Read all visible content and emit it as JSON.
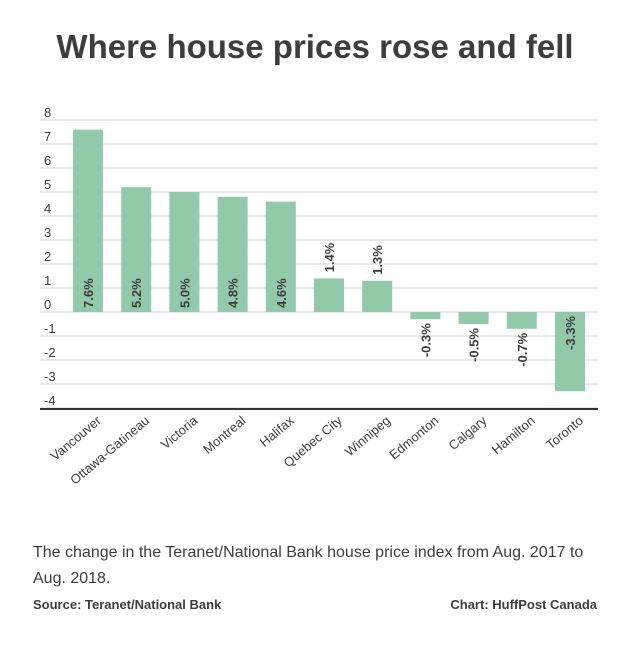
{
  "title": "Where house prices rose and fell",
  "caption": "The change in the Teranet/National Bank house price index from Aug. 2017 to Aug. 2018.",
  "source": "Source: Teranet/National Bank",
  "credit": "Chart: HuffPost Canada",
  "colors": {
    "bar": "#92c9a9",
    "text": "#3d3d3d",
    "grid": "#d0d0d0",
    "axis": "#333333"
  },
  "chart_data": {
    "type": "bar",
    "categories": [
      "Vancouver",
      "Ottawa-Gatineau",
      "Victoria",
      "Montreal",
      "Halifax",
      "Quebec City",
      "Winnipeg",
      "Edmonton",
      "Calgary",
      "Hamilton",
      "Toronto"
    ],
    "values": [
      7.6,
      5.2,
      5.0,
      4.8,
      4.6,
      1.4,
      1.3,
      -0.3,
      -0.5,
      -0.7,
      -3.3
    ],
    "data_labels": [
      "7.6%",
      "5.2%",
      "5.0%",
      "4.8%",
      "4.6%",
      "1.4%",
      "1.3%",
      "-0.3%",
      "-0.5%",
      "-0.7%",
      "-3.3%"
    ],
    "yticks": [
      "8",
      "7",
      "6",
      "5",
      "4",
      "3",
      "2",
      "1",
      "0",
      "-1",
      "-2",
      "-3",
      "-4"
    ],
    "ylim": [
      -4,
      8
    ],
    "grid": true
  }
}
